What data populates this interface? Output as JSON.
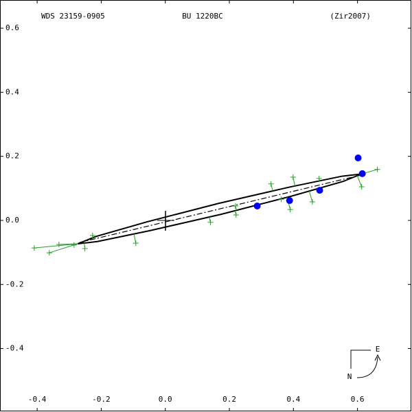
{
  "chart_data": {
    "type": "orbit",
    "subtitle": "WDS 23159-0905",
    "title": "BU 1220BC",
    "reference": "(Zir2007)",
    "xlim": [
      -0.516,
      0.768
    ],
    "ylim": [
      -0.596,
      0.688
    ],
    "xticks": [
      -0.4,
      -0.2,
      {
        "value": 0,
        "label": "0.0"
      },
      0.2,
      0.4,
      0.6
    ],
    "yticks": [
      -0.4,
      -0.2,
      {
        "value": 0,
        "label": "0.0"
      },
      0.2,
      0.4,
      0.6
    ],
    "orbit": {
      "color": "#000000",
      "x": [
        0.613,
        0.552,
        0.388,
        0.166,
        -0.055,
        -0.216,
        -0.273,
        -0.212,
        -0.048,
        0.174,
        0.395,
        0.556
      ],
      "y": [
        0.145,
        0.138,
        0.104,
        0.053,
        -0.004,
        -0.05,
        -0.073,
        -0.066,
        -0.032,
        0.019,
        0.076,
        0.122
      ]
    },
    "line_of_nodes": {
      "color": "#000000",
      "x": [
        -0.268,
        0.609
      ],
      "y": [
        -0.069,
        0.141
      ]
    },
    "observations": {
      "color": "#1fa01f",
      "x": [
        -0.409,
        -0.362,
        -0.332,
        -0.285,
        -0.251,
        -0.227,
        -0.092,
        0.141,
        0.221,
        0.219,
        0.33,
        0.362,
        0.39,
        0.399,
        0.459,
        0.48,
        0.613,
        0.662
      ],
      "y": [
        -0.086,
        -0.101,
        -0.075,
        -0.077,
        -0.088,
        -0.047,
        -0.071,
        -0.006,
        0.017,
        0.045,
        0.114,
        0.066,
        0.034,
        0.135,
        0.058,
        0.131,
        0.105,
        0.159
      ]
    },
    "predicted": {
      "color": "#0000ff",
      "x": [
        0.287,
        0.388,
        0.482,
        0.615,
        0.602
      ],
      "y": [
        0.045,
        0.062,
        0.094,
        0.146,
        0.195
      ]
    },
    "compass": {
      "east": "E",
      "north": "N"
    }
  }
}
